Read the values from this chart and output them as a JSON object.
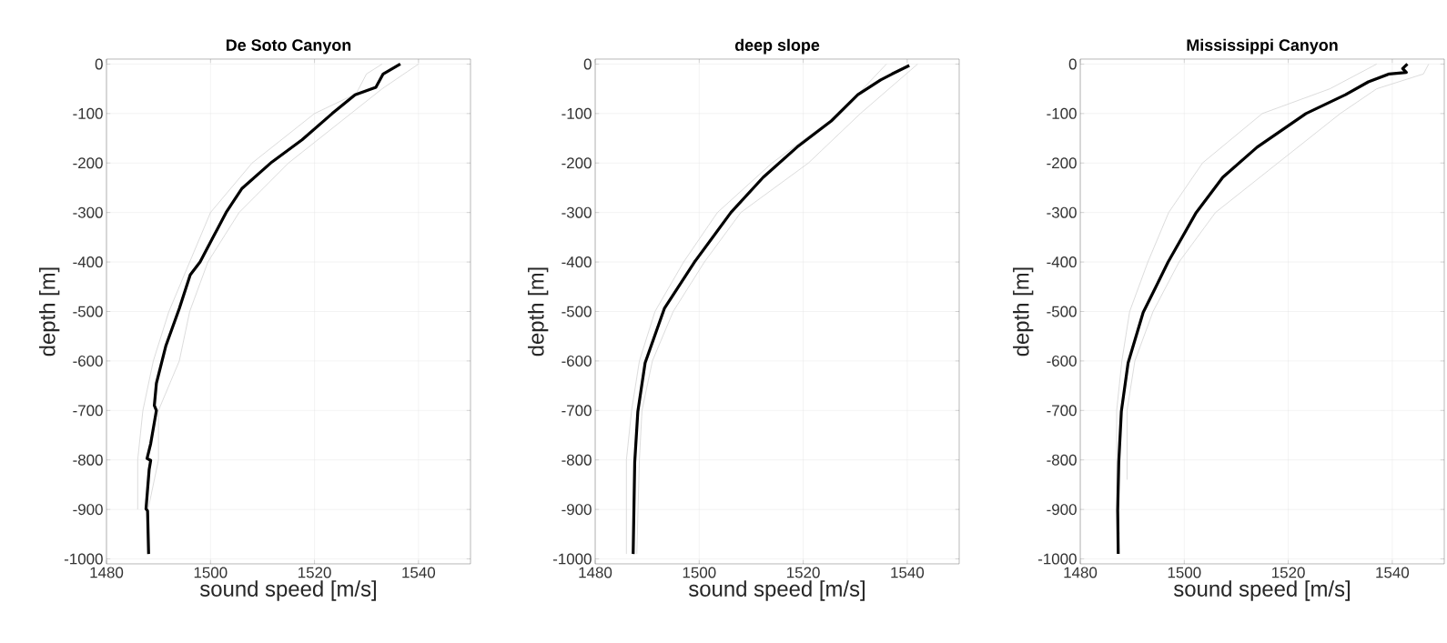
{
  "chart_data": [
    {
      "type": "line",
      "title": "De Soto Canyon",
      "xlabel": "sound speed [m/s]",
      "ylabel": "depth [m]",
      "xlim": [
        1480,
        1550
      ],
      "ylim": [
        -1010,
        10
      ],
      "xticks": [
        1480,
        1500,
        1520,
        1540
      ],
      "yticks": [
        -1000,
        -900,
        -800,
        -700,
        -600,
        -500,
        -400,
        -300,
        -200,
        -100,
        0
      ],
      "grid": true,
      "series": [
        {
          "color": "#d3d3d3",
          "x": [
            1533,
            1530,
            1528,
            1520,
            1508,
            1500,
            1496,
            1492,
            1489,
            1487,
            1486,
            1486
          ],
          "values": [
            0,
            -20,
            -60,
            -100,
            -200,
            -300,
            -400,
            -500,
            -600,
            -700,
            -800,
            -900
          ]
        },
        {
          "color": "#d3d3d3",
          "x": [
            1540,
            1533,
            1527,
            1515,
            1505.5,
            1499.5,
            1496,
            1494,
            1490,
            1490,
            1488
          ],
          "values": [
            0,
            -50,
            -100,
            -200,
            -300,
            -400,
            -500,
            -600,
            -700,
            -800,
            -900
          ]
        },
        {
          "color": "#000000",
          "x": [
            1536.5,
            1533.2,
            1531.8,
            1527.8,
            1523.4,
            1517.6,
            1511.8,
            1506,
            1503,
            1500.5,
            1498,
            1496.1,
            1494,
            1491.4,
            1489.6,
            1489.2,
            1489.6,
            1488.5,
            1487.8,
            1488.5,
            1488.2,
            1487.6,
            1487.9,
            1488.1
          ],
          "values": [
            0,
            -20,
            -47,
            -62,
            -100,
            -153,
            -198,
            -252,
            -300,
            -350,
            -400,
            -426,
            -494,
            -570,
            -645,
            -690,
            -700,
            -767,
            -797,
            -801,
            -820,
            -899,
            -903,
            -990
          ]
        }
      ]
    },
    {
      "type": "line",
      "title": "deep slope",
      "xlabel": "sound speed [m/s]",
      "ylabel": "depth [m]",
      "xlim": [
        1480,
        1550
      ],
      "ylim": [
        -1010,
        10
      ],
      "xticks": [
        1480,
        1500,
        1520,
        1540
      ],
      "yticks": [
        -1000,
        -900,
        -800,
        -700,
        -600,
        -500,
        -400,
        -300,
        -200,
        -100,
        0
      ],
      "grid": true,
      "series": [
        {
          "color": "#d3d3d3",
          "x": [
            1536,
            1527,
            1514,
            1503.5,
            1497,
            1491.5,
            1488.5,
            1487,
            1486,
            1486
          ],
          "values": [
            0,
            -100,
            -200,
            -300,
            -400,
            -500,
            -600,
            -700,
            -800,
            -990
          ]
        },
        {
          "color": "#d3d3d3",
          "x": [
            1542,
            1531,
            1521,
            1508,
            1501,
            1495,
            1491,
            1489,
            1488.5,
            1488
          ],
          "values": [
            0,
            -100,
            -200,
            -300,
            -400,
            -500,
            -600,
            -700,
            -800,
            -990
          ]
        },
        {
          "color": "#000000",
          "x": [
            1540.4,
            1537.1,
            1534.9,
            1530.5,
            1525.4,
            1518.8,
            1512.3,
            1506.1,
            1499.1,
            1493.3,
            1489.6,
            1488.2,
            1487.6,
            1487.3
          ],
          "values": [
            -3,
            -20,
            -32,
            -62,
            -115,
            -168,
            -229,
            -300,
            -400,
            -494,
            -604,
            -702,
            -805,
            -990
          ]
        }
      ]
    },
    {
      "type": "line",
      "title": "Mississippi Canyon",
      "xlabel": "sound speed [m/s]",
      "ylabel": "depth [m]",
      "xlim": [
        1480,
        1550
      ],
      "ylim": [
        -1010,
        10
      ],
      "xticks": [
        1480,
        1500,
        1520,
        1540
      ],
      "yticks": [
        -1000,
        -900,
        -800,
        -700,
        -600,
        -500,
        -400,
        -300,
        -200,
        -100,
        0
      ],
      "grid": true,
      "series": [
        {
          "color": "#d3d3d3",
          "x": [
            1537,
            1528,
            1515,
            1503.5,
            1497,
            1493,
            1489.5,
            1488,
            1487,
            1487,
            1487.5
          ],
          "values": [
            0,
            -50,
            -100,
            -200,
            -300,
            -400,
            -500,
            -600,
            -700,
            -900,
            -950
          ]
        },
        {
          "color": "#d3d3d3",
          "x": [
            1547,
            1546,
            1537,
            1530,
            1518,
            1506,
            1499,
            1494,
            1490.5,
            1489,
            1489
          ],
          "values": [
            0,
            -20,
            -50,
            -100,
            -200,
            -300,
            -400,
            -500,
            -600,
            -700,
            -840
          ]
        },
        {
          "color": "#000000",
          "x": [
            1542.9,
            1542,
            1542.7,
            1539.4,
            1535.4,
            1531,
            1523.4,
            1514,
            1507.4,
            1502.3,
            1496.9,
            1492.1,
            1489.2,
            1487.9,
            1487.4,
            1487.2,
            1487.3
          ],
          "values": [
            0,
            -9,
            -17,
            -20,
            -36,
            -62,
            -100,
            -168,
            -229,
            -300,
            -400,
            -502,
            -604,
            -702,
            -805,
            -903,
            -990
          ]
        }
      ]
    }
  ]
}
